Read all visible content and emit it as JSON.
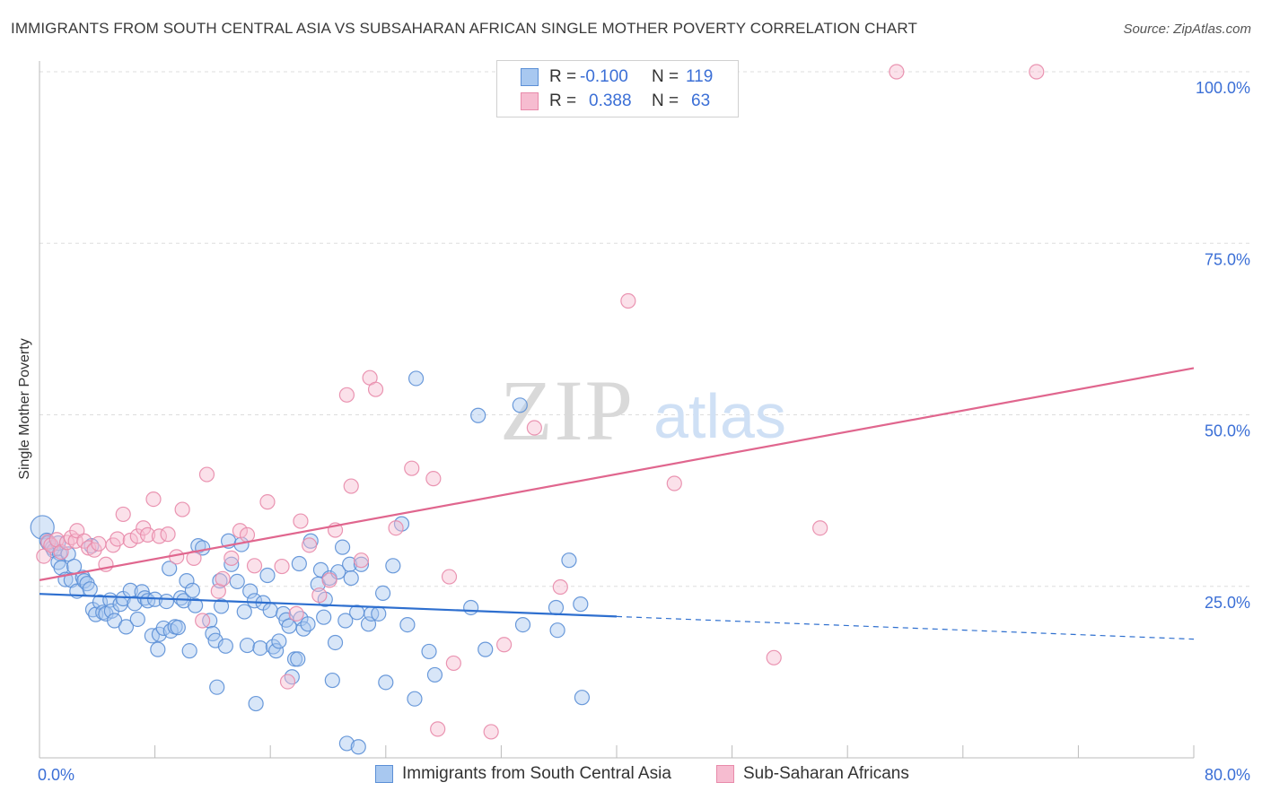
{
  "title": "IMMIGRANTS FROM SOUTH CENTRAL ASIA VS SUBSAHARAN AFRICAN SINGLE MOTHER POVERTY CORRELATION CHART",
  "source": "Source: ZipAtlas.com",
  "watermark": {
    "zip": "ZIP",
    "atlas": "atlas"
  },
  "legend": {
    "r_label": "R =",
    "n_label": "N =",
    "entries": [
      {
        "r": "-0.100",
        "n": "119",
        "color": "#a8c8f0",
        "edge": "#5b8fd6"
      },
      {
        "r": "0.388",
        "n": "63",
        "color": "#f6bcd0",
        "edge": "#e88aaa"
      }
    ]
  },
  "colors": {
    "blue_line": "#2e6fcf",
    "pink_line": "#e0668e",
    "axis_text": "#3b6fd6",
    "grid": "#dddddd"
  },
  "chart_data": {
    "type": "scatter",
    "xlabel": "",
    "ylabel": "Single Mother Poverty",
    "xlim": [
      0,
      80
    ],
    "ylim": [
      0,
      100
    ],
    "x_tick_labels": [
      "0.0%",
      "80.0%"
    ],
    "y_tick_labels": [
      "25.0%",
      "50.0%",
      "75.0%",
      "100.0%"
    ],
    "y_ticks": [
      25,
      50,
      75,
      100
    ],
    "grid": "horizontal dashed",
    "legend_position": "bottom",
    "series": [
      {
        "name": "Immigrants from South Central Asia",
        "color": "#a8c8f0",
        "edge": "#5b8fd6",
        "trend": {
          "x": [
            0,
            40
          ],
          "y": [
            23.9,
            20.6
          ],
          "dashed_to": [
            80,
            17.3
          ]
        },
        "points": [
          [
            0.2,
            33.6
          ],
          [
            0.5,
            31.7
          ],
          [
            0.6,
            31.3
          ],
          [
            0.9,
            30.6
          ],
          [
            1.0,
            30.2
          ],
          [
            1.3,
            31.3
          ],
          [
            1.4,
            29.8
          ],
          [
            1.3,
            28.5
          ],
          [
            1.5,
            27.7
          ],
          [
            2.0,
            29.7
          ],
          [
            1.8,
            26.0
          ],
          [
            2.4,
            27.9
          ],
          [
            2.2,
            25.9
          ],
          [
            2.6,
            24.3
          ],
          [
            3.0,
            26.3
          ],
          [
            3.1,
            25.8
          ],
          [
            3.3,
            25.4
          ],
          [
            3.5,
            24.6
          ],
          [
            3.6,
            30.9
          ],
          [
            3.7,
            21.6
          ],
          [
            3.9,
            20.9
          ],
          [
            4.2,
            22.7
          ],
          [
            4.4,
            21.2
          ],
          [
            4.6,
            21.0
          ],
          [
            4.9,
            23.0
          ],
          [
            5.0,
            21.4
          ],
          [
            5.2,
            20.0
          ],
          [
            5.6,
            22.4
          ],
          [
            5.8,
            23.2
          ],
          [
            6.0,
            19.1
          ],
          [
            6.3,
            24.4
          ],
          [
            6.6,
            22.5
          ],
          [
            6.8,
            20.2
          ],
          [
            7.1,
            24.2
          ],
          [
            7.3,
            23.3
          ],
          [
            7.5,
            22.9
          ],
          [
            7.8,
            17.8
          ],
          [
            8.0,
            23.1
          ],
          [
            8.2,
            15.8
          ],
          [
            8.3,
            18.0
          ],
          [
            8.6,
            18.9
          ],
          [
            8.8,
            22.8
          ],
          [
            9.1,
            18.5
          ],
          [
            9.0,
            27.6
          ],
          [
            9.4,
            19.1
          ],
          [
            9.6,
            19.0
          ],
          [
            9.8,
            23.3
          ],
          [
            10.0,
            22.9
          ],
          [
            10.2,
            25.8
          ],
          [
            10.4,
            15.6
          ],
          [
            10.6,
            24.4
          ],
          [
            10.8,
            22.2
          ],
          [
            11.0,
            30.9
          ],
          [
            11.3,
            30.6
          ],
          [
            11.8,
            20.0
          ],
          [
            12.0,
            18.1
          ],
          [
            12.2,
            17.1
          ],
          [
            12.3,
            10.3
          ],
          [
            12.5,
            25.8
          ],
          [
            12.6,
            22.1
          ],
          [
            12.9,
            16.3
          ],
          [
            13.1,
            31.6
          ],
          [
            13.3,
            28.2
          ],
          [
            13.7,
            25.7
          ],
          [
            14.0,
            31.1
          ],
          [
            14.2,
            21.3
          ],
          [
            14.4,
            16.4
          ],
          [
            14.6,
            24.3
          ],
          [
            14.9,
            22.9
          ],
          [
            15.0,
            7.9
          ],
          [
            15.3,
            16.0
          ],
          [
            15.5,
            22.6
          ],
          [
            15.8,
            26.6
          ],
          [
            16.0,
            21.5
          ],
          [
            16.2,
            16.2
          ],
          [
            16.4,
            15.6
          ],
          [
            16.6,
            17.0
          ],
          [
            16.9,
            21.0
          ],
          [
            17.1,
            20.1
          ],
          [
            17.3,
            19.2
          ],
          [
            17.5,
            11.8
          ],
          [
            17.7,
            14.4
          ],
          [
            17.9,
            14.4
          ],
          [
            18.1,
            20.3
          ],
          [
            18.3,
            18.8
          ],
          [
            18.6,
            19.5
          ],
          [
            18.0,
            28.3
          ],
          [
            18.8,
            31.6
          ],
          [
            19.3,
            25.3
          ],
          [
            19.5,
            27.4
          ],
          [
            19.8,
            23.1
          ],
          [
            19.7,
            20.5
          ],
          [
            20.1,
            26.2
          ],
          [
            20.3,
            11.3
          ],
          [
            20.5,
            16.8
          ],
          [
            20.7,
            27.1
          ],
          [
            21.0,
            30.7
          ],
          [
            21.2,
            20.0
          ],
          [
            21.5,
            28.2
          ],
          [
            21.6,
            26.2
          ],
          [
            21.3,
            2.1
          ],
          [
            22.1,
            1.6
          ],
          [
            22.0,
            21.2
          ],
          [
            22.3,
            28.2
          ],
          [
            22.8,
            19.5
          ],
          [
            23.0,
            21.0
          ],
          [
            23.5,
            21.0
          ],
          [
            23.8,
            24.0
          ],
          [
            24.0,
            11.0
          ],
          [
            24.5,
            28.0
          ],
          [
            25.1,
            34.1
          ],
          [
            25.5,
            19.4
          ],
          [
            26.0,
            8.6
          ],
          [
            26.1,
            55.3
          ],
          [
            27.0,
            15.5
          ],
          [
            27.4,
            12.1
          ],
          [
            29.9,
            21.9
          ],
          [
            30.4,
            49.9
          ],
          [
            30.9,
            15.8
          ],
          [
            33.3,
            51.4
          ],
          [
            33.5,
            19.4
          ],
          [
            35.8,
            21.9
          ],
          [
            35.9,
            18.6
          ],
          [
            36.7,
            28.8
          ],
          [
            37.5,
            22.4
          ],
          [
            37.6,
            8.8
          ]
        ]
      },
      {
        "name": "Sub-Saharan Africans",
        "color": "#f6bcd0",
        "edge": "#e88aaa",
        "trend": {
          "x": [
            0,
            80
          ],
          "y": [
            25.9,
            56.8
          ]
        },
        "points": [
          [
            0.3,
            29.4
          ],
          [
            0.6,
            31.5
          ],
          [
            0.8,
            31.0
          ],
          [
            1.2,
            31.8
          ],
          [
            1.5,
            30.0
          ],
          [
            1.9,
            31.4
          ],
          [
            2.2,
            32.1
          ],
          [
            2.5,
            31.6
          ],
          [
            2.6,
            33.1
          ],
          [
            3.1,
            31.6
          ],
          [
            3.4,
            30.6
          ],
          [
            3.8,
            30.3
          ],
          [
            4.1,
            31.2
          ],
          [
            4.6,
            28.2
          ],
          [
            5.1,
            31.0
          ],
          [
            5.4,
            31.9
          ],
          [
            5.8,
            35.5
          ],
          [
            6.3,
            31.7
          ],
          [
            6.8,
            32.3
          ],
          [
            7.2,
            33.5
          ],
          [
            7.5,
            32.5
          ],
          [
            7.9,
            37.7
          ],
          [
            8.3,
            32.3
          ],
          [
            8.9,
            32.6
          ],
          [
            9.5,
            29.3
          ],
          [
            9.9,
            36.2
          ],
          [
            10.7,
            29.1
          ],
          [
            11.3,
            20.0
          ],
          [
            11.6,
            41.3
          ],
          [
            12.4,
            24.3
          ],
          [
            12.7,
            26.1
          ],
          [
            13.3,
            29.1
          ],
          [
            13.9,
            33.1
          ],
          [
            14.4,
            32.5
          ],
          [
            14.9,
            28.0
          ],
          [
            15.8,
            37.3
          ],
          [
            16.8,
            27.9
          ],
          [
            17.2,
            11.1
          ],
          [
            17.8,
            21.0
          ],
          [
            18.1,
            34.5
          ],
          [
            18.7,
            31.0
          ],
          [
            19.4,
            23.7
          ],
          [
            20.1,
            25.9
          ],
          [
            20.5,
            33.2
          ],
          [
            21.3,
            52.9
          ],
          [
            21.6,
            39.6
          ],
          [
            22.3,
            28.8
          ],
          [
            22.9,
            55.4
          ],
          [
            23.3,
            53.7
          ],
          [
            24.7,
            33.5
          ],
          [
            25.8,
            42.2
          ],
          [
            27.3,
            40.7
          ],
          [
            27.6,
            4.2
          ],
          [
            28.4,
            26.4
          ],
          [
            28.7,
            13.8
          ],
          [
            31.3,
            3.8
          ],
          [
            32.2,
            16.5
          ],
          [
            34.3,
            48.1
          ],
          [
            36.1,
            24.9
          ],
          [
            40.8,
            66.6
          ],
          [
            44.0,
            40.0
          ],
          [
            50.9,
            14.6
          ],
          [
            54.1,
            33.5
          ],
          [
            59.4,
            100.0
          ],
          [
            69.1,
            100.0
          ]
        ]
      }
    ]
  }
}
